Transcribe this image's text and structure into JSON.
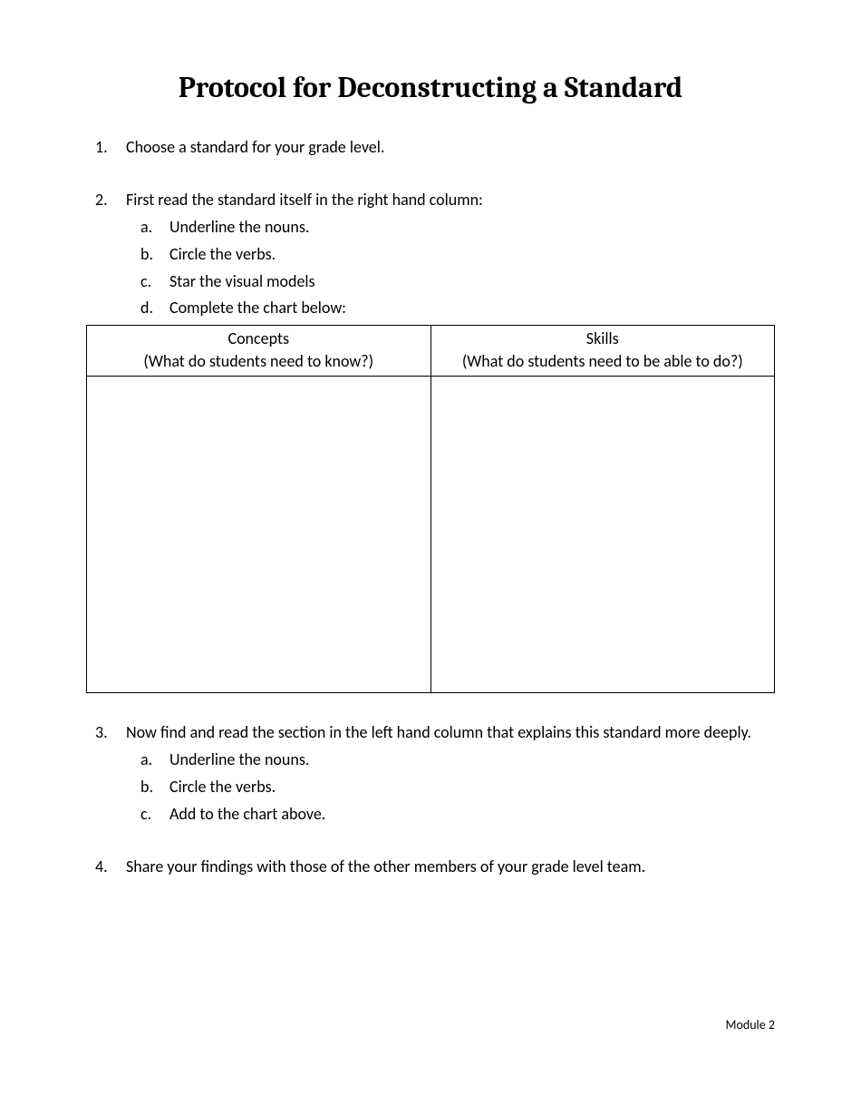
{
  "title": "Protocol for Deconstructing a Standard",
  "items": [
    {
      "text": "Choose a standard for your grade level.",
      "sub": []
    },
    {
      "text": "First read the standard itself in the right hand column:",
      "sub": [
        "Underline the nouns.",
        "Circle the verbs.",
        "Star the visual models",
        "Complete the chart below:"
      ],
      "hasTable": true
    },
    {
      "text": "Now find and read the section in the left hand column that explains this standard more deeply.",
      "sub": [
        "Underline the nouns.",
        "Circle the verbs.",
        "Add to the chart above."
      ]
    },
    {
      "text": "Share your findings with those of the other members of your grade level team.",
      "sub": []
    }
  ],
  "table": {
    "columns": [
      {
        "title": "Concepts",
        "sub": "(What do students need to know?)"
      },
      {
        "title": "Skills",
        "sub": "(What do students need to be able to do?)"
      }
    ]
  },
  "footer": "Module 2"
}
